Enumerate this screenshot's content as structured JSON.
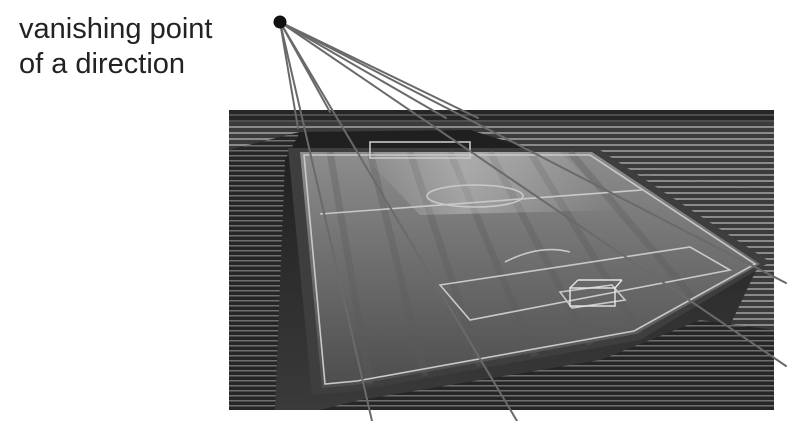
{
  "annotation": {
    "line1": "vanishing point",
    "line2": "of a direction"
  },
  "photo": {
    "subject": "stadium-soccer-field",
    "tone": "grayscale"
  },
  "colors": {
    "background": "#ffffff",
    "text": "#222222",
    "point": "#111111",
    "ray": "#6a6a6a"
  }
}
